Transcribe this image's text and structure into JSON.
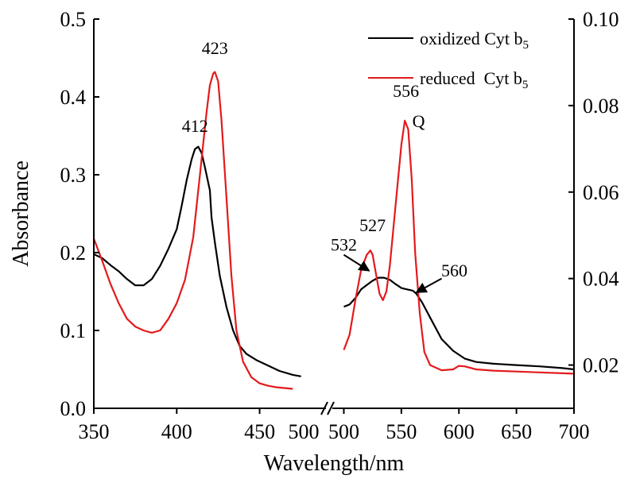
{
  "chart_data": {
    "type": "line",
    "xlabel": "Wavelength/nm",
    "ylabel": "Absorbance",
    "x_axis_break": true,
    "x_segments": [
      {
        "xlim": [
          350,
          490
        ],
        "ticks": [
          350,
          400,
          450
        ],
        "y_axis": "left"
      },
      {
        "xlim": [
          490,
          700
        ],
        "ticks": [
          500,
          550,
          600,
          650,
          700
        ],
        "y_axis": "right"
      }
    ],
    "break_tick_label": "500",
    "y_left": {
      "ylim": [
        0,
        0.5
      ],
      "ticks": [
        "0.0",
        "0.1",
        "0.2",
        "0.3",
        "0.4",
        "0.5"
      ]
    },
    "y_right": {
      "ylim": [
        0.01,
        0.1
      ],
      "ticks": [
        "0.02",
        "0.04",
        "0.06",
        "0.08",
        "0.10"
      ]
    },
    "legend": {
      "position": "top-right"
    },
    "series": [
      {
        "name": "oxidized Cyt b",
        "name_subscript": "5",
        "color": "#000000",
        "segments": [
          {
            "axis": "left",
            "points": [
              [
                350,
                0.198
              ],
              [
                355,
                0.193
              ],
              [
                360,
                0.184
              ],
              [
                365,
                0.176
              ],
              [
                370,
                0.166
              ],
              [
                375,
                0.158
              ],
              [
                380,
                0.158
              ],
              [
                385,
                0.166
              ],
              [
                390,
                0.183
              ],
              [
                395,
                0.205
              ],
              [
                400,
                0.23
              ],
              [
                403,
                0.26
              ],
              [
                406,
                0.293
              ],
              [
                409,
                0.32
              ],
              [
                411,
                0.333
              ],
              [
                413,
                0.336
              ],
              [
                415,
                0.328
              ],
              [
                417,
                0.31
              ],
              [
                420,
                0.28
              ],
              [
                421,
                0.245
              ],
              [
                423,
                0.213
              ],
              [
                426,
                0.17
              ],
              [
                430,
                0.13
              ],
              [
                434,
                0.1
              ],
              [
                438,
                0.08
              ],
              [
                442,
                0.07
              ],
              [
                448,
                0.062
              ],
              [
                455,
                0.055
              ],
              [
                462,
                0.048
              ],
              [
                470,
                0.043
              ],
              [
                475,
                0.041
              ]
            ]
          },
          {
            "axis": "right",
            "points": [
              [
                500,
                0.0335
              ],
              [
                505,
                0.034
              ],
              [
                510,
                0.0355
              ],
              [
                515,
                0.0375
              ],
              [
                520,
                0.0385
              ],
              [
                525,
                0.0395
              ],
              [
                530,
                0.0402
              ],
              [
                535,
                0.0402
              ],
              [
                540,
                0.0397
              ],
              [
                545,
                0.0387
              ],
              [
                550,
                0.0378
              ],
              [
                555,
                0.0375
              ],
              [
                560,
                0.0372
              ],
              [
                563,
                0.0365
              ],
              [
                568,
                0.0345
              ],
              [
                575,
                0.031
              ],
              [
                585,
                0.026
              ],
              [
                595,
                0.0233
              ],
              [
                605,
                0.0215
              ],
              [
                615,
                0.0207
              ],
              [
                630,
                0.0203
              ],
              [
                650,
                0.02
              ],
              [
                670,
                0.0197
              ],
              [
                690,
                0.0193
              ],
              [
                700,
                0.019
              ]
            ]
          }
        ]
      },
      {
        "name": "reduced  Cyt b",
        "name_subscript": "5",
        "color": "#e31a1c",
        "segments": [
          {
            "axis": "left",
            "points": [
              [
                350,
                0.218
              ],
              [
                355,
                0.19
              ],
              [
                360,
                0.16
              ],
              [
                365,
                0.135
              ],
              [
                370,
                0.115
              ],
              [
                375,
                0.105
              ],
              [
                380,
                0.1
              ],
              [
                385,
                0.097
              ],
              [
                390,
                0.1
              ],
              [
                395,
                0.115
              ],
              [
                400,
                0.135
              ],
              [
                405,
                0.165
              ],
              [
                410,
                0.22
              ],
              [
                414,
                0.3
              ],
              [
                418,
                0.38
              ],
              [
                420,
                0.415
              ],
              [
                422,
                0.43
              ],
              [
                423,
                0.432
              ],
              [
                425,
                0.42
              ],
              [
                427,
                0.37
              ],
              [
                430,
                0.27
              ],
              [
                433,
                0.17
              ],
              [
                436,
                0.1
              ],
              [
                440,
                0.06
              ],
              [
                445,
                0.04
              ],
              [
                450,
                0.032
              ],
              [
                455,
                0.029
              ],
              [
                460,
                0.027
              ],
              [
                465,
                0.026
              ],
              [
                470,
                0.025
              ]
            ]
          },
          {
            "axis": "right",
            "points": [
              [
                500,
                0.0235
              ],
              [
                505,
                0.027
              ],
              [
                510,
                0.035
              ],
              [
                515,
                0.042
              ],
              [
                520,
                0.0455
              ],
              [
                523,
                0.0465
              ],
              [
                525,
                0.0455
              ],
              [
                528,
                0.041
              ],
              [
                531,
                0.0365
              ],
              [
                534,
                0.035
              ],
              [
                537,
                0.037
              ],
              [
                540,
                0.043
              ],
              [
                545,
                0.057
              ],
              [
                550,
                0.071
              ],
              [
                553,
                0.0765
              ],
              [
                556,
                0.0745
              ],
              [
                559,
                0.063
              ],
              [
                562,
                0.046
              ],
              [
                566,
                0.032
              ],
              [
                570,
                0.023
              ],
              [
                575,
                0.02
              ],
              [
                585,
                0.0188
              ],
              [
                595,
                0.019
              ],
              [
                600,
                0.0198
              ],
              [
                605,
                0.0197
              ],
              [
                615,
                0.019
              ],
              [
                630,
                0.0187
              ],
              [
                650,
                0.0185
              ],
              [
                670,
                0.0183
              ],
              [
                690,
                0.0181
              ],
              [
                700,
                0.018
              ]
            ]
          }
        ]
      }
    ],
    "annotations": [
      {
        "text": "423",
        "x": 423,
        "y": 0.455,
        "axis": "left"
      },
      {
        "text": "412",
        "x": 411,
        "y": 0.355,
        "axis": "left"
      },
      {
        "text": "556",
        "x": 554,
        "y": 0.082,
        "axis": "right"
      },
      {
        "text": "Q",
        "x": 565,
        "y": 0.075,
        "axis": "right"
      },
      {
        "text": "527",
        "x": 525,
        "y": 0.051,
        "axis": "right"
      },
      {
        "text": "532",
        "x": 500,
        "y": 0.0465,
        "axis": "right"
      },
      {
        "text": "560",
        "x": 596,
        "y": 0.0405,
        "axis": "right"
      }
    ],
    "arrows": [
      {
        "from": [
          500,
          0.0455
        ],
        "to": [
          522,
          0.0418
        ],
        "axis": "right"
      },
      {
        "from": [
          585,
          0.04
        ],
        "to": [
          563,
          0.0368
        ],
        "axis": "right"
      }
    ]
  }
}
